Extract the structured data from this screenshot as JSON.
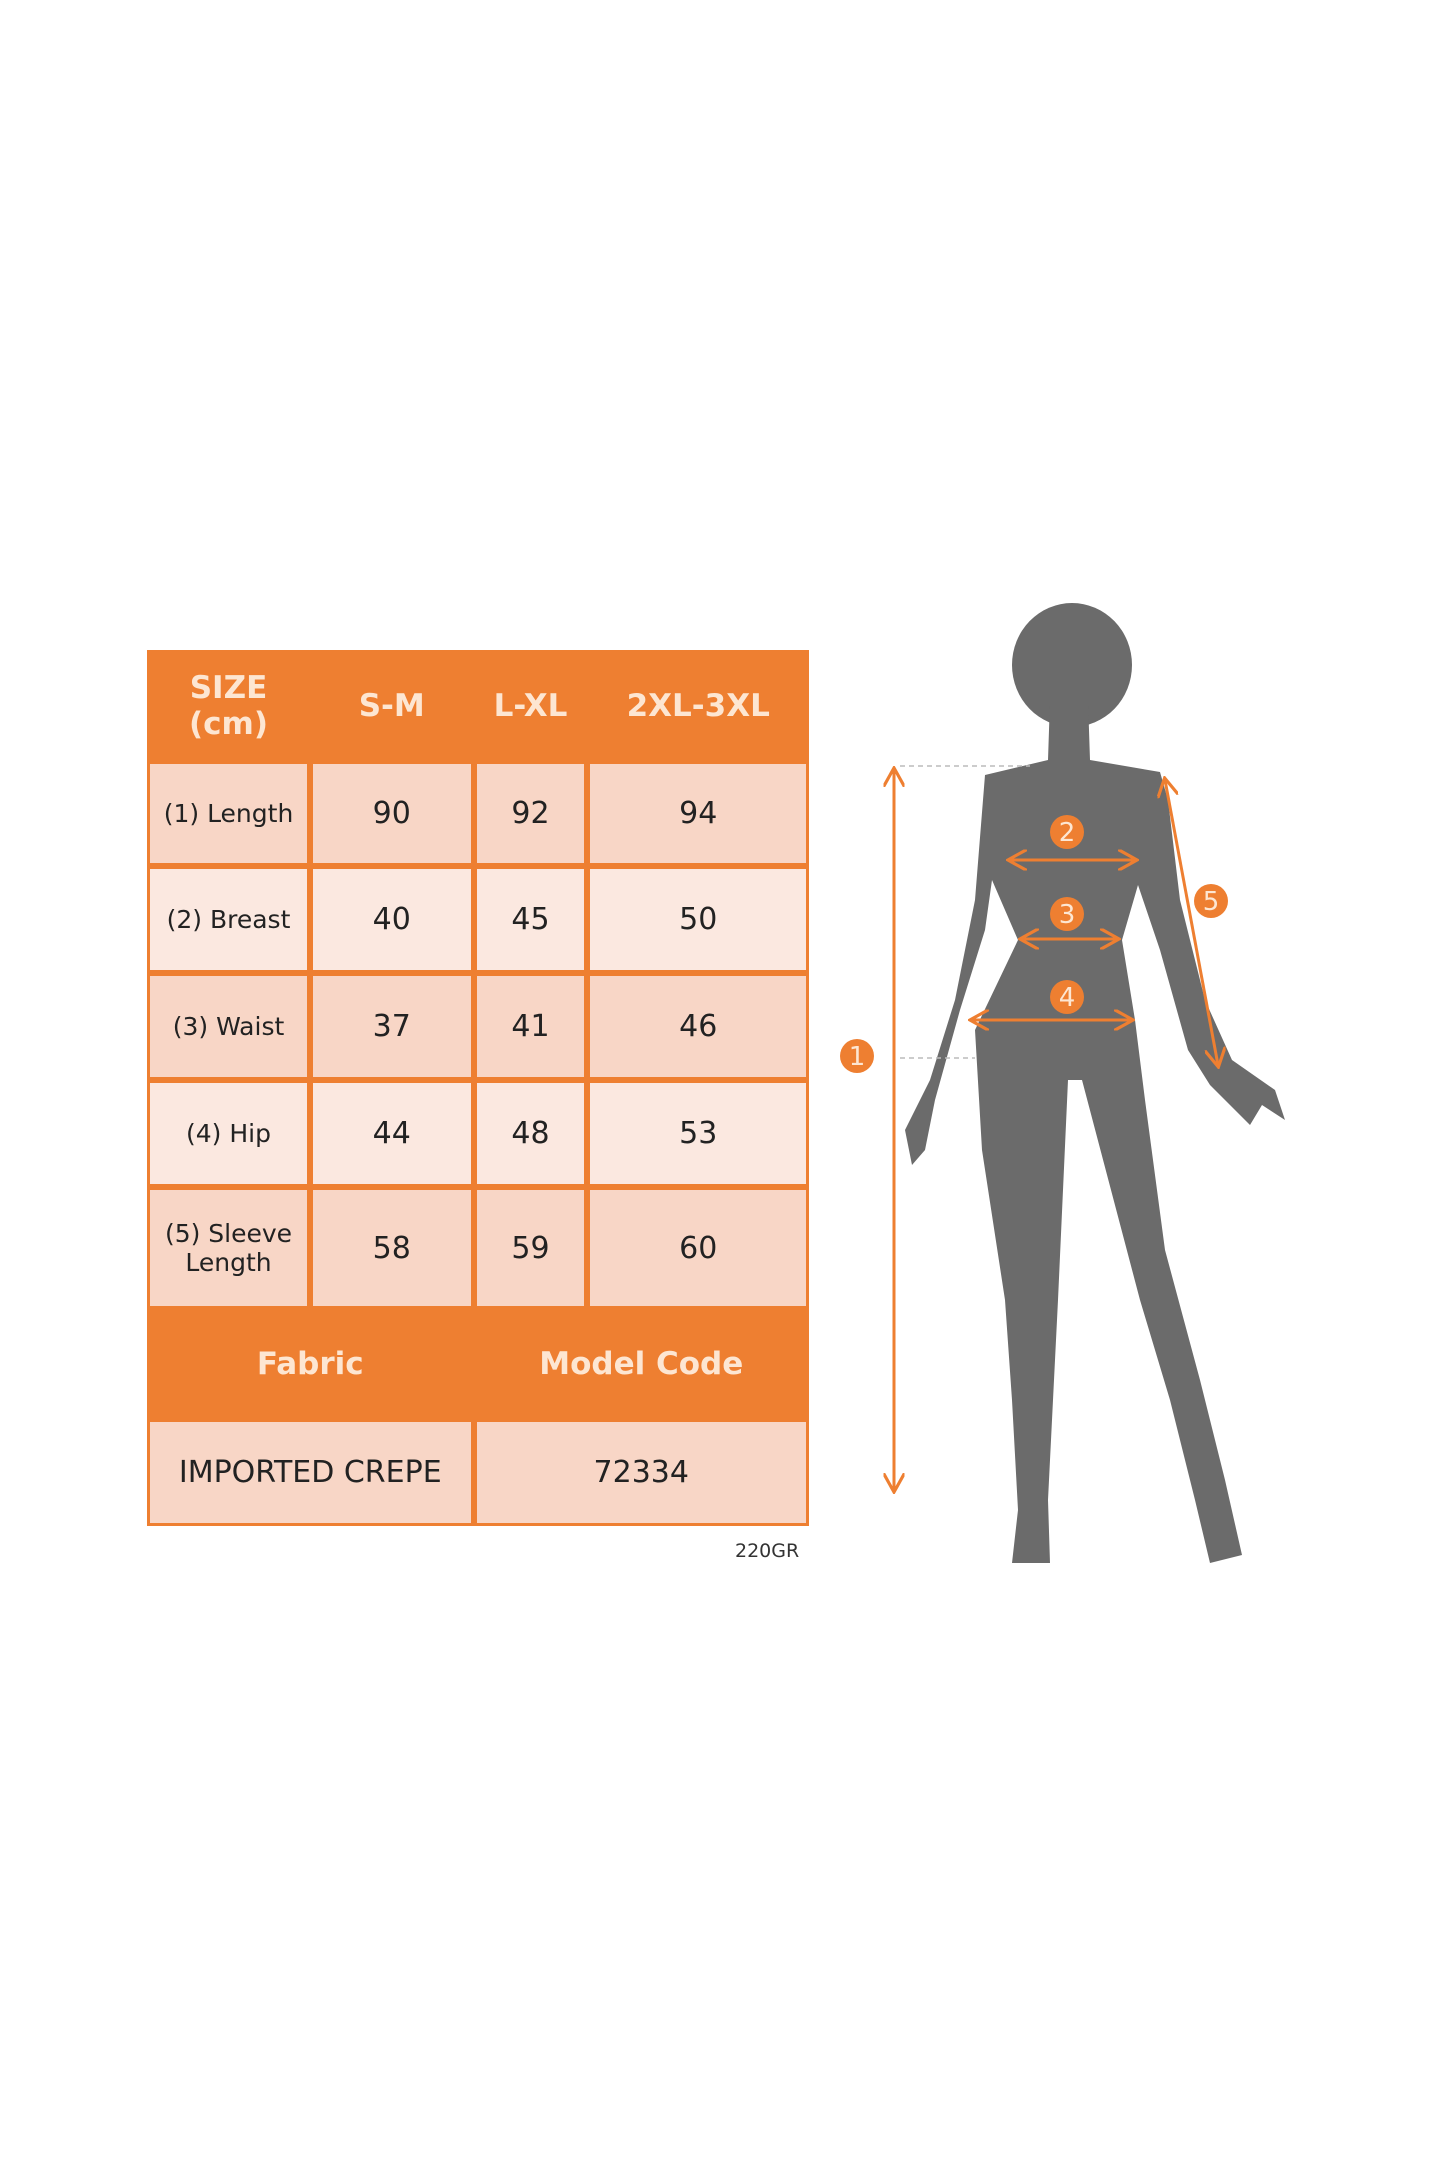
{
  "table": {
    "header": {
      "size": "SIZE",
      "unit": "(cm)",
      "columns": [
        "S-M",
        "L-XL",
        "2XL-3XL"
      ]
    },
    "rows": [
      {
        "label": "(1) Length",
        "values": [
          "90",
          "92",
          "94"
        ]
      },
      {
        "label": "(2) Breast",
        "values": [
          "40",
          "45",
          "50"
        ]
      },
      {
        "label": "(3) Waist",
        "values": [
          "37",
          "41",
          "46"
        ]
      },
      {
        "label": "(4) Hip",
        "values": [
          "44",
          "48",
          "53"
        ]
      },
      {
        "label_line1": "(5) Sleeve",
        "label_line2": "Length",
        "values": [
          "58",
          "59",
          "60"
        ]
      }
    ],
    "footer_headers": {
      "fabric": "Fabric",
      "model_code": "Model Code"
    },
    "footer_values": {
      "fabric": "IMPORTED CREPE",
      "model_code": "72334"
    }
  },
  "weight_note": "220GR",
  "figure": {
    "markers": [
      "1",
      "2",
      "3",
      "4",
      "5"
    ]
  },
  "colors": {
    "accent": "#ee7f31",
    "cell_dark": "#f8d6c6",
    "cell_light": "#fbe8e0",
    "silhouette": "#6b6b6b"
  }
}
